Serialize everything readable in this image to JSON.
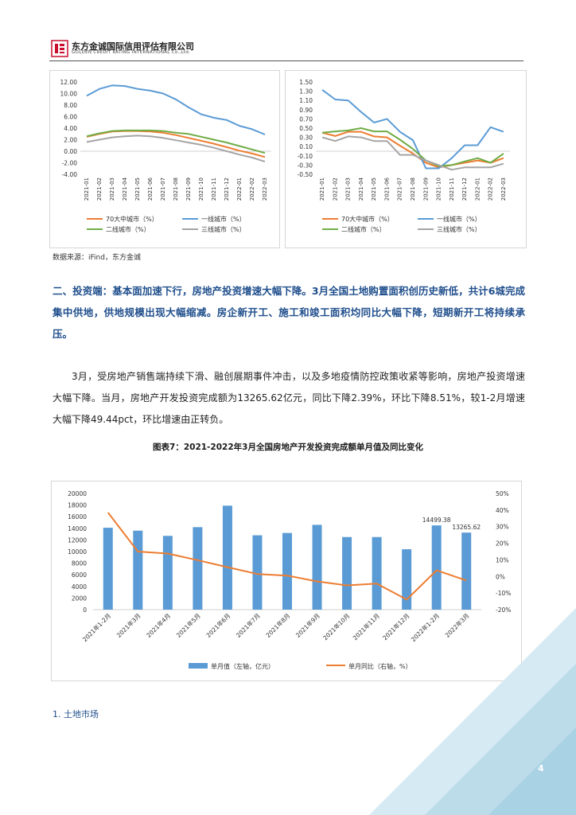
{
  "header": {
    "company_cn": "东方金诚国际信用评估有限公司",
    "company_en": "GOLDEN CREDIT RATING INTERNATIONAL Co.,Ltd.",
    "logo_icon": "golden-credit-logo-icon",
    "brand_color": "#c8102e"
  },
  "source_note": "数据来源：iFind，东方金诚",
  "section_heading": "二、投资端：基本面加速下行，房地产投资增速大幅下降。3月全国土地购置面积创历史新低，共计6城完成集中供地，供地规模出现大幅缩减。房企新开工、施工和竣工面积均同比大幅下降，短期新开工将持续承压。",
  "body_paragraph": "3月，受房地产销售端持续下滑、融创展期事件冲击，以及多地疫情防控政策收紧等影响，房地产投资增速大幅下降。当月，房地产开发投资完成额为13265.62亿元，同比下降2.39%，环比下降8.51%，较1-2月增速大幅下降49.44pct，环比增速由正转负。",
  "figure7_title": "图表7：2021-2022年3月全国房地产开发投资完成额单月值及同比变化",
  "sub_heading": "1. 土地市场",
  "page_number": "4",
  "chart_data": [
    {
      "type": "line",
      "x": [
        "2021-01",
        "2021-02",
        "2021-03",
        "2021-04",
        "2021-05",
        "2021-06",
        "2021-07",
        "2021-08",
        "2021-09",
        "2021-10",
        "2021-11",
        "2021-12",
        "2022-01",
        "2022-02",
        "2022-03"
      ],
      "ylim": [
        -4.0,
        12.0
      ],
      "yticks": [
        "12.00",
        "10.00",
        "8.00",
        "6.00",
        "4.00",
        "2.00",
        "0.00",
        "-2.00",
        "-4.00"
      ],
      "series": [
        {
          "name": "70大中城市（%）",
          "color": "#ed7d31",
          "values": [
            2.5,
            3.0,
            3.4,
            3.5,
            3.5,
            3.4,
            3.2,
            2.8,
            2.3,
            1.8,
            1.3,
            0.7,
            0.1,
            -0.4,
            -1.0
          ]
        },
        {
          "name": "一线城市（%）",
          "color": "#5b9bd5",
          "values": [
            9.6,
            10.8,
            11.4,
            11.3,
            10.8,
            10.5,
            10.0,
            9.0,
            7.6,
            6.4,
            5.8,
            5.4,
            4.4,
            3.8,
            2.9
          ]
        },
        {
          "name": "二线城市（%）",
          "color": "#70ad47",
          "values": [
            2.6,
            3.1,
            3.5,
            3.6,
            3.6,
            3.6,
            3.5,
            3.2,
            3.0,
            2.5,
            2.0,
            1.5,
            0.9,
            0.3,
            -0.3
          ]
        },
        {
          "name": "三线城市（%）",
          "color": "#a5a5a5",
          "values": [
            1.6,
            2.0,
            2.4,
            2.6,
            2.7,
            2.6,
            2.3,
            1.9,
            1.5,
            1.1,
            0.6,
            0.0,
            -0.6,
            -1.1,
            -1.8
          ]
        }
      ]
    },
    {
      "type": "line",
      "x": [
        "2021-01",
        "2021-02",
        "2021-03",
        "2021-04",
        "2021-05",
        "2021-06",
        "2021-07",
        "2021-08",
        "2021-09",
        "2021-10",
        "2021-11",
        "2021-12",
        "2022-01",
        "2022-02",
        "2022-03"
      ],
      "ylim": [
        -0.5,
        1.5
      ],
      "yticks": [
        "1.50",
        "1.30",
        "1.10",
        "0.90",
        "0.70",
        "0.50",
        "0.30",
        "0.10",
        "-0.10",
        "-0.30",
        "-0.50"
      ],
      "series": [
        {
          "name": "70大中城市（%）",
          "color": "#ed7d31",
          "values": [
            0.4,
            0.33,
            0.42,
            0.42,
            0.32,
            0.3,
            0.12,
            -0.05,
            -0.25,
            -0.35,
            -0.3,
            -0.25,
            -0.2,
            -0.25,
            -0.15
          ]
        },
        {
          "name": "一线城市（%）",
          "color": "#5b9bd5",
          "values": [
            1.33,
            1.12,
            1.1,
            0.85,
            0.62,
            0.7,
            0.42,
            0.24,
            -0.37,
            -0.37,
            -0.15,
            0.13,
            0.13,
            0.52,
            0.42
          ]
        },
        {
          "name": "二线城市（%）",
          "color": "#70ad47",
          "values": [
            0.4,
            0.43,
            0.45,
            0.5,
            0.43,
            0.43,
            0.25,
            0.05,
            -0.2,
            -0.32,
            -0.3,
            -0.22,
            -0.15,
            -0.25,
            -0.05
          ]
        },
        {
          "name": "三线城市（%）",
          "color": "#a5a5a5",
          "values": [
            0.3,
            0.22,
            0.32,
            0.3,
            0.22,
            0.22,
            -0.08,
            -0.08,
            -0.2,
            -0.3,
            -0.4,
            -0.35,
            -0.35,
            -0.35,
            -0.27
          ]
        }
      ]
    },
    {
      "type": "bar",
      "categories": [
        "2021年1-2月",
        "2021年3月",
        "2021年4月",
        "2021年5月",
        "2021年6月",
        "2021年7月",
        "2021年8月",
        "2021年9月",
        "2021年10月",
        "2021年11月",
        "2021年12月",
        "2022年1-2月",
        "2022年3月"
      ],
      "ylim": [
        0,
        20000
      ],
      "yticks": [
        "20000",
        "18000",
        "16000",
        "14000",
        "12000",
        "10000",
        "8000",
        "6000",
        "4000",
        "2000",
        "0"
      ],
      "y2lim": [
        -20,
        50
      ],
      "y2ticks": [
        "50%",
        "40%",
        "30%",
        "20%",
        "10%",
        "0%",
        "-10%",
        "-20%"
      ],
      "series": [
        {
          "name": "单月值（左轴，亿元）",
          "type": "bar",
          "color": "#5b9bd5",
          "values": [
            14100,
            13600,
            12700,
            14200,
            17900,
            12800,
            13200,
            14600,
            12500,
            12500,
            10400,
            14499.38,
            13265.62
          ]
        },
        {
          "name": "单月同比（右轴，%）",
          "type": "line",
          "color": "#ed7d31",
          "values": [
            38.5,
            15.0,
            13.8,
            9.8,
            5.6,
            1.5,
            0.5,
            -3.0,
            -5.4,
            -4.3,
            -13.9,
            3.7,
            -2.4
          ]
        }
      ],
      "data_labels": [
        "14499.38",
        "13265.62"
      ]
    }
  ]
}
